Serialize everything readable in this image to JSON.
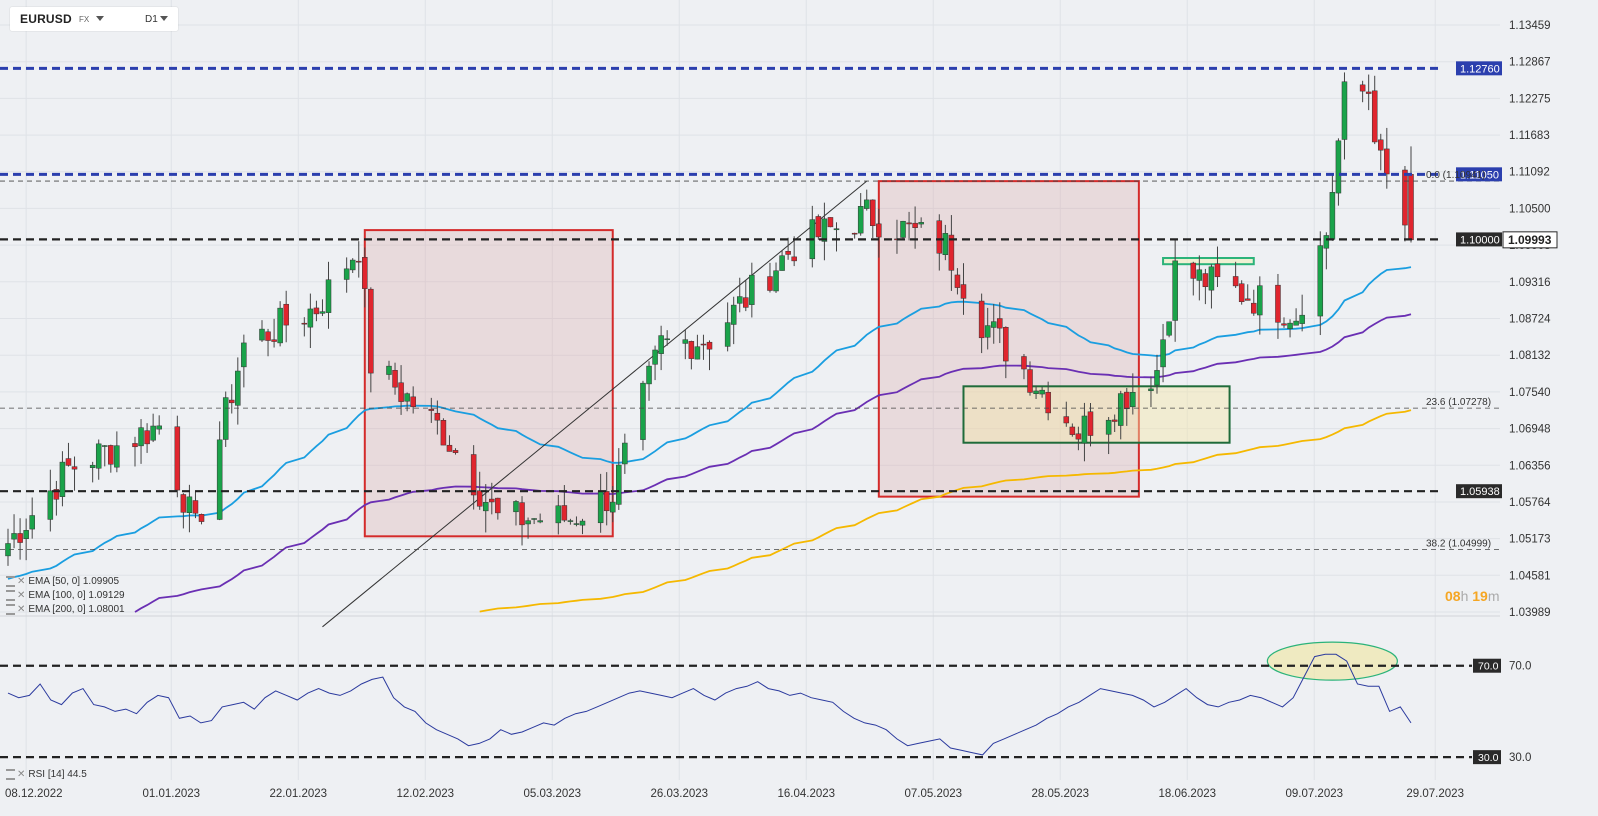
{
  "header": {
    "symbol": "EURUSD",
    "market": "FX",
    "timeframe": "D1"
  },
  "price_axis": {
    "ticks": [
      "1.13459",
      "1.12867",
      "1.12275",
      "1.11683",
      "1.11092",
      "1.10500",
      "1.09908",
      "1.09316",
      "1.08724",
      "1.08132",
      "1.07540",
      "1.06948",
      "1.06356",
      "1.05764",
      "1.05173",
      "1.04581",
      "1.03989"
    ]
  },
  "date_axis": {
    "ticks": [
      "08.12.2022",
      "01.01.2023",
      "22.01.2023",
      "12.02.2023",
      "05.03.2023",
      "26.03.2023",
      "16.04.2023",
      "07.05.2023",
      "28.05.2023",
      "18.06.2023",
      "09.07.2023",
      "29.07.2023"
    ]
  },
  "price_levels": [
    {
      "label": "1.12760",
      "value": 1.1276,
      "style": "blue-dash"
    },
    {
      "label": "1.11050",
      "value": 1.1105,
      "style": "blue-dash"
    },
    {
      "label": "1.10000",
      "value": 1.1,
      "style": "black-dash"
    },
    {
      "label": "1.05938",
      "value": 1.05938,
      "style": "black-dash"
    }
  ],
  "current_price": {
    "label": "1.09993",
    "value": 1.09993
  },
  "fib_levels": [
    {
      "label": "0.0 (1.10941)",
      "value": 1.10941
    },
    {
      "label": "23.6 (1.07278)",
      "value": 1.07278
    },
    {
      "label": "38.2 (1.04999)",
      "value": 1.04999
    }
  ],
  "indicators": [
    {
      "label": "EMA [50, 0] 1.09905",
      "color": "#1a9ee0"
    },
    {
      "label": "EMA [100, 0] 1.09129",
      "color": "#6a2fb3"
    },
    {
      "label": "EMA [200, 0] 1.08001",
      "color": "#f5b800"
    }
  ],
  "timer": {
    "hours": "08",
    "h": "h",
    "minutes": "19",
    "m": "m"
  },
  "rsi": {
    "label": "RSI [14] 44.5",
    "upper": "70.0",
    "lower": "30.0",
    "upper_value": 70,
    "lower_value": 30
  },
  "colors": {
    "bull": "#1aa34a",
    "bear": "#e0252e",
    "background": "#eef0f3",
    "zone_red": "#d42a2a",
    "zone_green": "#1f6b3a",
    "level_blue": "#2b3fae",
    "rsi_line": "#2b3a9e"
  },
  "chart_data": {
    "type": "candlestick",
    "x_start": "2022-12-05",
    "x_end": "2023-07-25",
    "ylim": [
      1.03989,
      1.13459
    ],
    "key_closes": [
      {
        "date": "2022-12-05",
        "value": 1.051
      },
      {
        "date": "2022-12-15",
        "value": 1.063
      },
      {
        "date": "2022-12-30",
        "value": 1.07
      },
      {
        "date": "2023-01-05",
        "value": 1.053
      },
      {
        "date": "2023-01-13",
        "value": 1.083
      },
      {
        "date": "2023-01-25",
        "value": 1.089
      },
      {
        "date": "2023-02-01",
        "value": 1.099
      },
      {
        "date": "2023-02-03",
        "value": 1.08
      },
      {
        "date": "2023-02-15",
        "value": 1.069
      },
      {
        "date": "2023-02-24",
        "value": 1.055
      },
      {
        "date": "2023-03-08",
        "value": 1.055
      },
      {
        "date": "2023-03-15",
        "value": 1.059
      },
      {
        "date": "2023-03-23",
        "value": 1.083
      },
      {
        "date": "2023-03-31",
        "value": 1.084
      },
      {
        "date": "2023-04-14",
        "value": 1.099
      },
      {
        "date": "2023-04-26",
        "value": 1.104
      },
      {
        "date": "2023-05-09",
        "value": 1.099
      },
      {
        "date": "2023-05-15",
        "value": 1.087
      },
      {
        "date": "2023-05-31",
        "value": 1.069
      },
      {
        "date": "2023-06-13",
        "value": 1.079
      },
      {
        "date": "2023-06-16",
        "value": 1.095
      },
      {
        "date": "2023-06-28",
        "value": 1.091
      },
      {
        "date": "2023-07-06",
        "value": 1.088
      },
      {
        "date": "2023-07-11",
        "value": 1.101
      },
      {
        "date": "2023-07-14",
        "value": 1.123
      },
      {
        "date": "2023-07-18",
        "value": 1.124
      },
      {
        "date": "2023-07-20",
        "value": 1.112
      },
      {
        "date": "2023-07-25",
        "value": 1.0999
      }
    ],
    "rsi_series": [
      58,
      56,
      57,
      62,
      55,
      53,
      58,
      60,
      53,
      52,
      50,
      51,
      49,
      54,
      57,
      56,
      47,
      48,
      45,
      46,
      52,
      53,
      54,
      51,
      56,
      59,
      57,
      55,
      58,
      60,
      58,
      57,
      59,
      62,
      64,
      65,
      56,
      52,
      50,
      45,
      42,
      40,
      38,
      35,
      36,
      38,
      42,
      40,
      41,
      43,
      45,
      44,
      47,
      49,
      50,
      52,
      54,
      56,
      58,
      59,
      58,
      57,
      56,
      58,
      60,
      57,
      55,
      58,
      60,
      61,
      63,
      60,
      59,
      57,
      58,
      56,
      55,
      54,
      50,
      47,
      45,
      44,
      42,
      38,
      35,
      36,
      37,
      38,
      34,
      33,
      32,
      31,
      36,
      38,
      40,
      42,
      44,
      47,
      49,
      52,
      54,
      57,
      60,
      59,
      58,
      57,
      55,
      52,
      54,
      57,
      60,
      56,
      53,
      52,
      54,
      55,
      57,
      56,
      54,
      52,
      56,
      65,
      74,
      75,
      75,
      72,
      62,
      61,
      61,
      50,
      52,
      45
    ]
  }
}
